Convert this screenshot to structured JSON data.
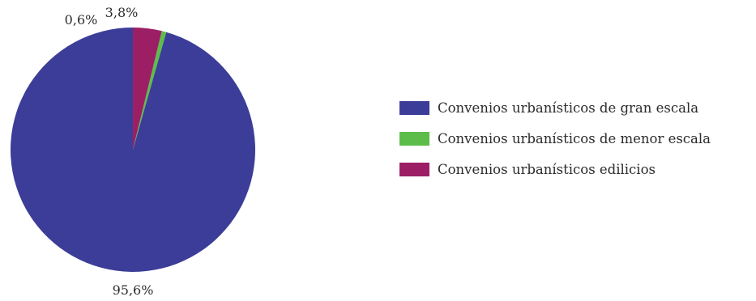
{
  "chart_data": {
    "type": "pie",
    "start": "top",
    "direction": "counterclockwise",
    "slices": [
      {
        "name": "Convenios urbanísticos de gran escala",
        "value": 95.6,
        "label": "95,6%",
        "color": "#3b3d98"
      },
      {
        "name": "Convenios urbanísticos de menor escala",
        "value": 0.6,
        "label": "0,6%",
        "color": "#5dbd4a"
      },
      {
        "name": "Convenios urbanísticos edilicios",
        "value": 3.8,
        "label": "3,8%",
        "color": "#9c1f66"
      }
    ],
    "legend_position": "right"
  }
}
